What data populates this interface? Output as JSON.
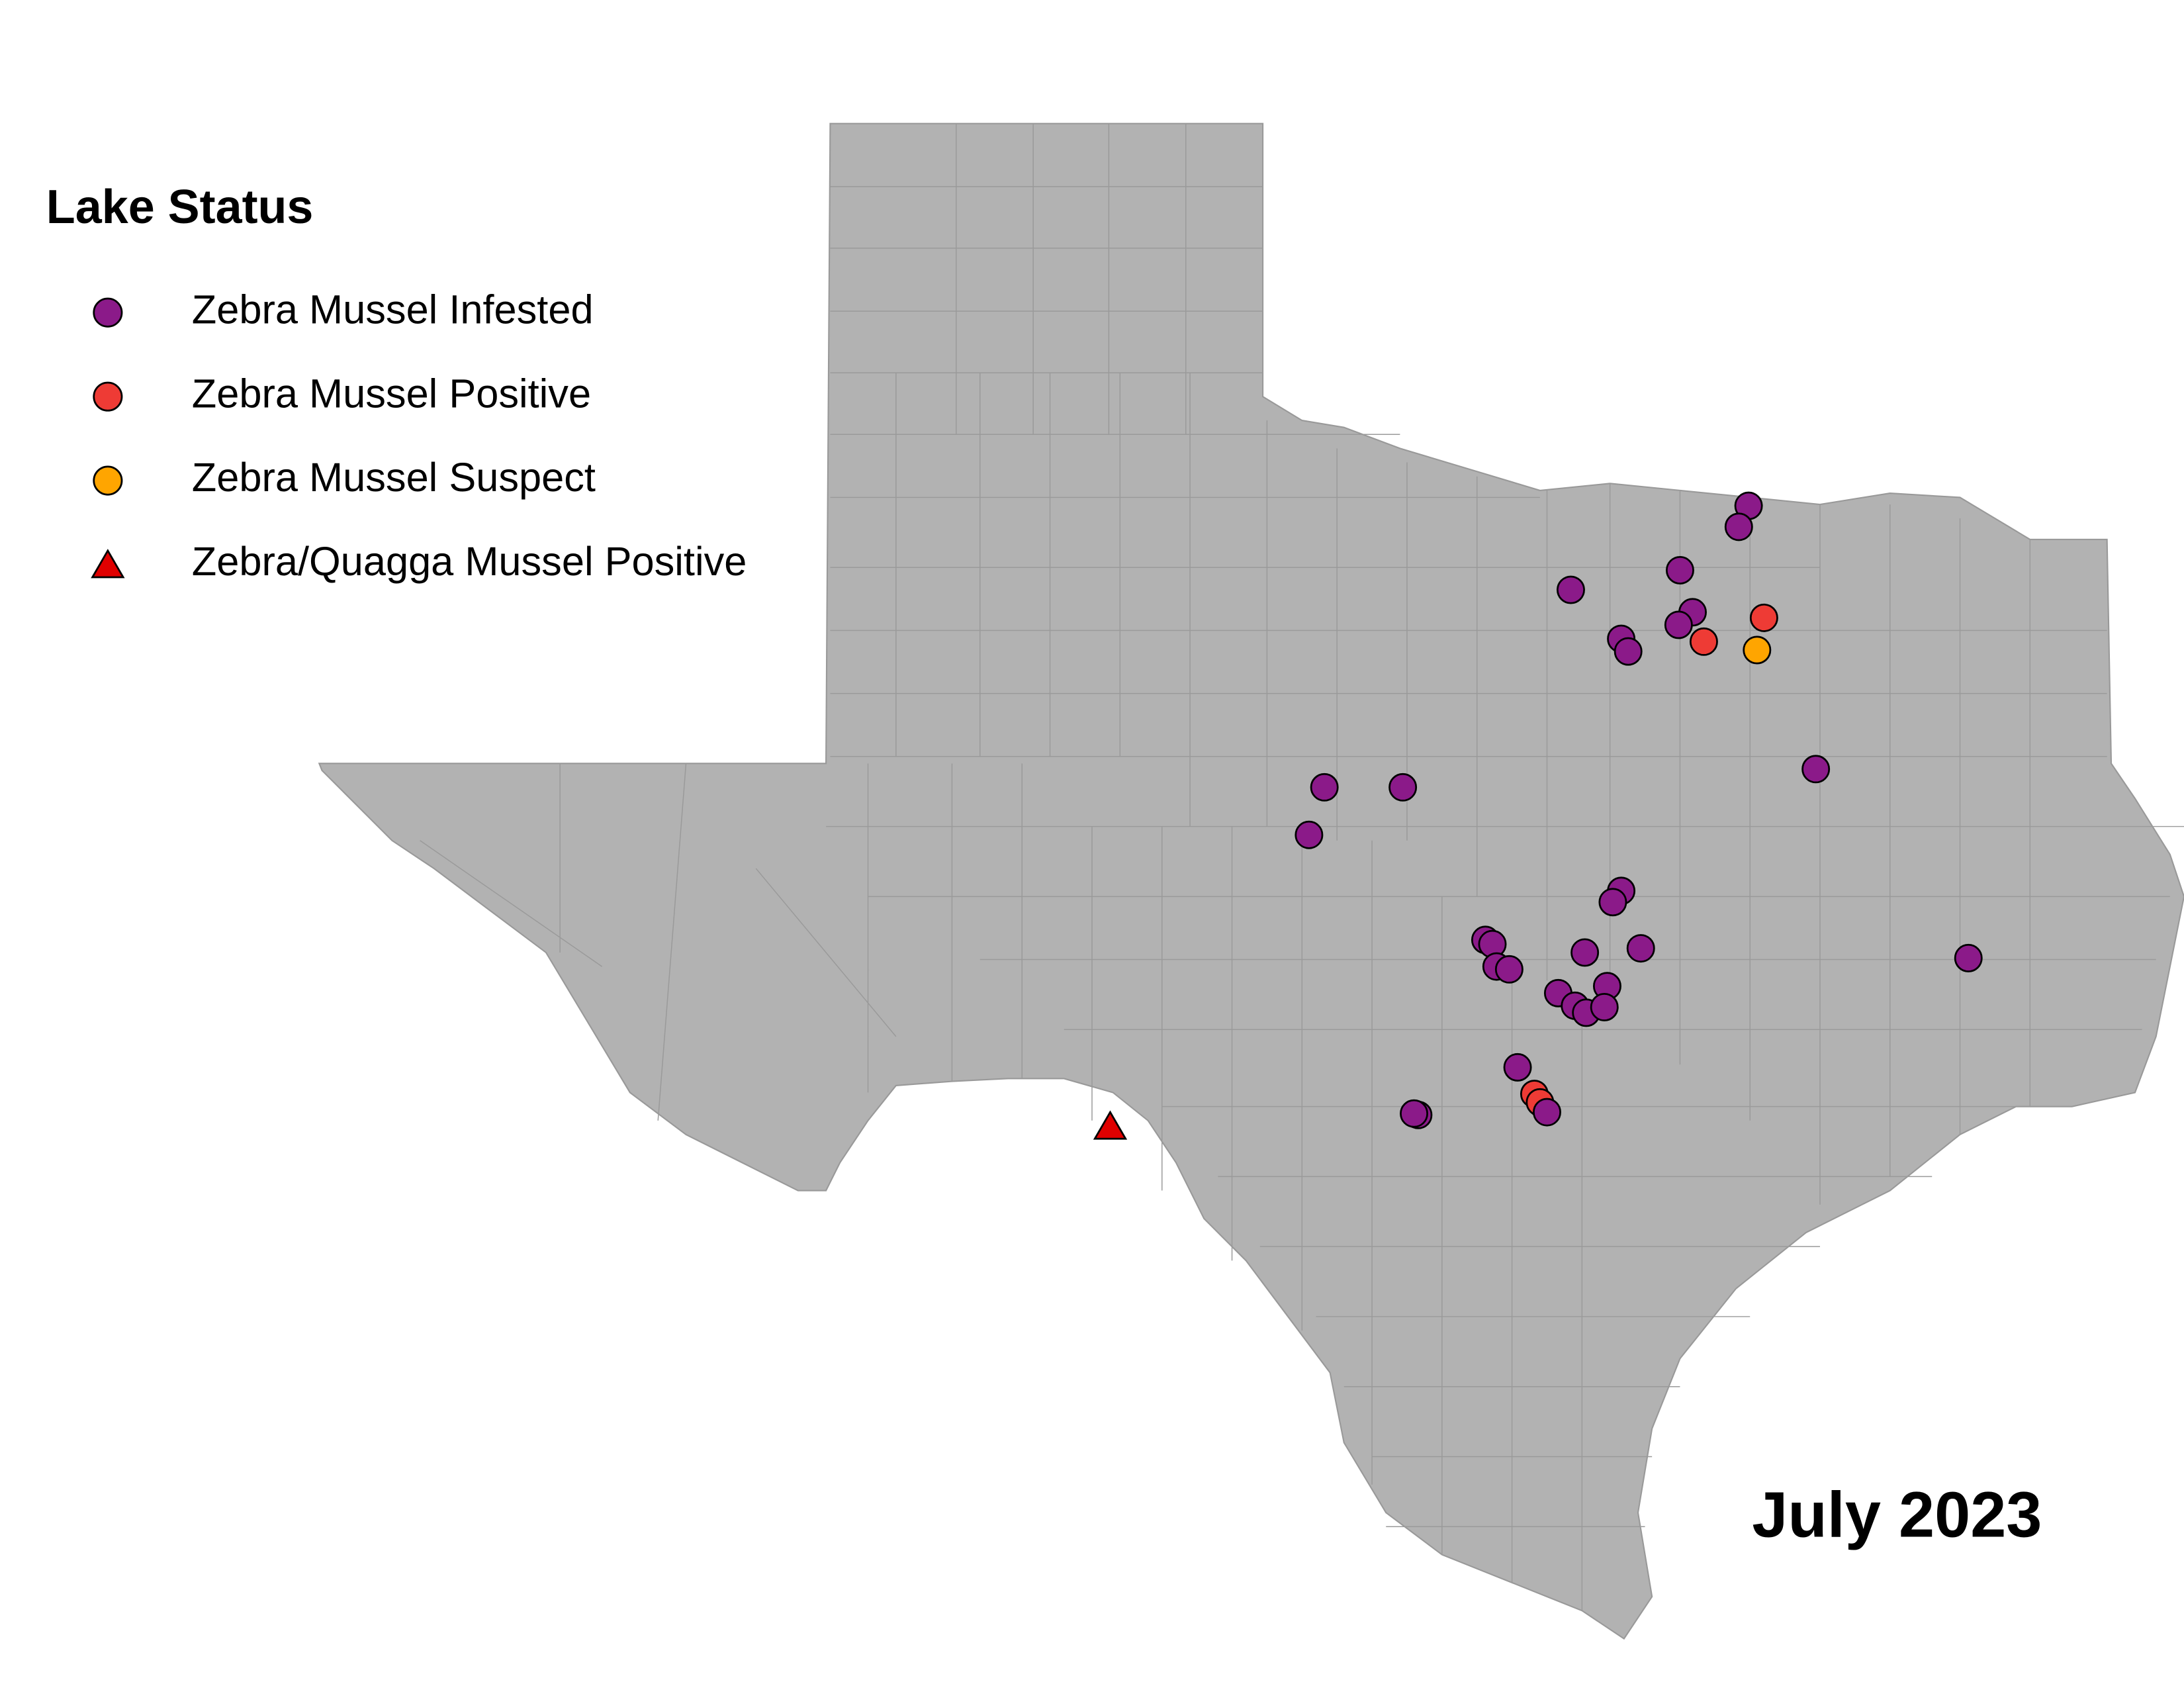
{
  "legend": {
    "title": "Lake Status",
    "items": [
      {
        "label": "Zebra Mussel Infested",
        "color": "#8b1a89"
      },
      {
        "label": "Zebra Mussel Positive",
        "color": "#ee3b35"
      },
      {
        "label": "Zebra Mussel Suspect",
        "color": "#ffa500"
      },
      {
        "label": "Zebra/Quagga Mussel Positive",
        "color": "#e00000"
      }
    ]
  },
  "date": "July 2023"
}
